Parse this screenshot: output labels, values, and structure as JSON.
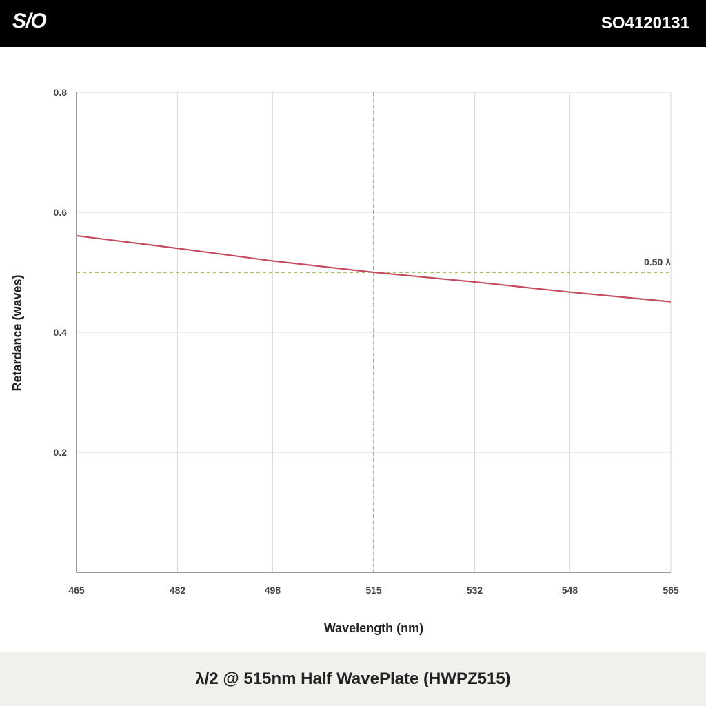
{
  "header": {
    "logo": "S/O",
    "part_number": "SO4120131"
  },
  "footer": {
    "title": "λ/2 @ 515nm Half WavePlate (HWPZ515)"
  },
  "colors": {
    "series": "#c44a5f",
    "reference": "#8aa640",
    "design_marker": "#777777",
    "grid": "#d9d9d9"
  },
  "chart_data": {
    "type": "line",
    "title": "",
    "xlabel": "Wavelength (nm)",
    "ylabel": "Retardance (waves)",
    "xlim": [
      465,
      565
    ],
    "ylim": [
      0,
      0.8
    ],
    "x_ticks": [
      465,
      482,
      498,
      515,
      532,
      548,
      565
    ],
    "y_ticks": [
      0.2,
      0.4,
      0.6,
      0.8
    ],
    "y_tick_labels": [
      "0.2",
      "0.4",
      "0.6",
      "0.8"
    ],
    "grid": true,
    "series": [
      {
        "x": [
          465,
          482,
          498,
          515,
          532,
          548,
          565
        ],
        "values": [
          0.561,
          0.54,
          0.519,
          0.5,
          0.484,
          0.467,
          0.451
        ]
      }
    ],
    "reference_line": {
      "y": 0.5,
      "label": "0.50 λ"
    },
    "design_wavelength": 515
  }
}
